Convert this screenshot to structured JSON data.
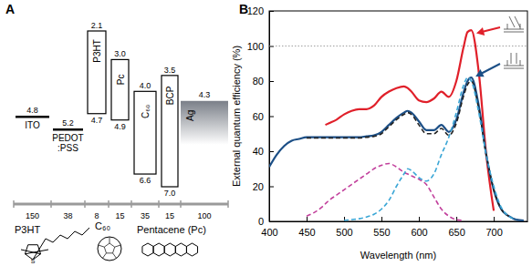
{
  "energy_diagram": {
    "panel_label": "A",
    "layers": [
      {
        "name": [
          "ITO"
        ],
        "shape": "line",
        "levels": [
          {
            "value": 4.8,
            "label": "4.8"
          }
        ],
        "thickness": 150
      },
      {
        "name": [
          "PEDOT",
          ":PSS"
        ],
        "shape": "line",
        "levels": [
          {
            "value": 5.2,
            "label": "5.2"
          }
        ],
        "thickness": 38
      },
      {
        "name": [
          "P3HT"
        ],
        "shape": "box",
        "levels": [
          {
            "value": 2.1,
            "label": "2.1"
          },
          {
            "value": 4.7,
            "label": "4.7"
          }
        ],
        "thickness": 8
      },
      {
        "name": [
          "Pc"
        ],
        "shape": "box",
        "levels": [
          {
            "value": 3.0,
            "label": "3.0"
          },
          {
            "value": 4.9,
            "label": "4.9"
          }
        ],
        "thickness": 15
      },
      {
        "name": [
          "C₆₀"
        ],
        "shape": "box",
        "levels": [
          {
            "value": 4.0,
            "label": "4.0"
          },
          {
            "value": 6.6,
            "label": "6.6"
          }
        ],
        "thickness": 35
      },
      {
        "name": [
          "BCP"
        ],
        "shape": "box",
        "levels": [
          {
            "value": 3.5,
            "label": "3.5"
          },
          {
            "value": 7.0,
            "label": "7.0"
          }
        ],
        "thickness": 15
      },
      {
        "name": [
          "Ag"
        ],
        "shape": "electrode",
        "levels": [
          {
            "value": 4.3,
            "label": "4.3"
          }
        ],
        "thickness": 100
      }
    ],
    "molecules": [
      {
        "label": "P3HT",
        "atom": "S"
      },
      {
        "label": "C₆₀"
      },
      {
        "label": "Pentacene (Pc)"
      }
    ]
  },
  "chart_data": {
    "type": "line",
    "title": "B",
    "x_label": "Wavelength (nm)",
    "y_label": "External quantum efficiency (%)",
    "x": [
      400,
      410,
      420,
      430,
      440,
      450,
      460,
      470,
      475,
      480,
      490,
      500,
      510,
      520,
      530,
      540,
      550,
      560,
      570,
      580,
      585,
      590,
      600,
      610,
      620,
      630,
      640,
      650,
      660,
      665,
      670,
      680,
      690,
      700,
      710,
      720,
      730,
      740
    ],
    "series": [
      {
        "color": "#e0202a",
        "line_style": "solid",
        "values": [
          null,
          null,
          null,
          null,
          null,
          null,
          null,
          null,
          55,
          56,
          58,
          61,
          63,
          64,
          64,
          66,
          71,
          74,
          76,
          77,
          76,
          74,
          69,
          68,
          70,
          74,
          71,
          80,
          100,
          108,
          109,
          85,
          38,
          6,
          null,
          null,
          null,
          null
        ]
      },
      {
        "color": "#1c4f86",
        "line_style": "solid",
        "values": [
          31,
          38,
          43,
          46,
          47,
          48,
          48,
          48,
          48,
          48,
          48,
          48,
          48,
          48,
          48.5,
          49,
          51,
          55,
          59,
          62,
          63,
          62,
          57,
          52,
          52,
          55,
          51,
          58,
          74,
          80,
          82,
          66,
          38,
          18,
          7,
          3,
          1,
          0.5
        ]
      },
      {
        "color": "#222222",
        "line_style": "dashed",
        "values": [
          null,
          null,
          null,
          null,
          null,
          47.5,
          47.5,
          47.5,
          47.5,
          47.5,
          47.5,
          47.5,
          47.5,
          47.5,
          48,
          48.5,
          50,
          54,
          58,
          61,
          62,
          61,
          55,
          50,
          50,
          53,
          49,
          56,
          72,
          78,
          80,
          64,
          38,
          18,
          7,
          3,
          null,
          null
        ]
      },
      {
        "color": "#c2409c",
        "line_style": "dashed",
        "values": [
          null,
          null,
          null,
          null,
          null,
          3,
          5,
          8,
          10,
          12,
          15,
          18,
          21,
          24,
          27,
          30,
          32,
          33,
          31,
          28,
          27,
          26,
          24,
          21,
          14,
          7,
          3,
          1,
          0.5,
          null,
          null,
          null,
          null,
          null,
          null,
          null,
          null,
          null
        ]
      },
      {
        "color": "#3aa6d6",
        "line_style": "dashed",
        "values": [
          null,
          null,
          null,
          null,
          null,
          null,
          null,
          null,
          null,
          null,
          null,
          0.5,
          1,
          1.5,
          2.5,
          4,
          7,
          12,
          20,
          27,
          30,
          29,
          25,
          23,
          27,
          38,
          48,
          62,
          78,
          82,
          80,
          62,
          38,
          20,
          8,
          3,
          1,
          null
        ]
      }
    ],
    "xlim": [
      400,
      745
    ],
    "xticks": [
      400,
      450,
      500,
      550,
      600,
      650,
      700
    ],
    "ylim": [
      0,
      120
    ],
    "yticks": [
      0,
      20,
      40,
      60,
      80,
      100,
      120
    ],
    "reference_lines": [
      {
        "y": 100,
        "line_style": "dotted"
      }
    ],
    "grid": false
  }
}
